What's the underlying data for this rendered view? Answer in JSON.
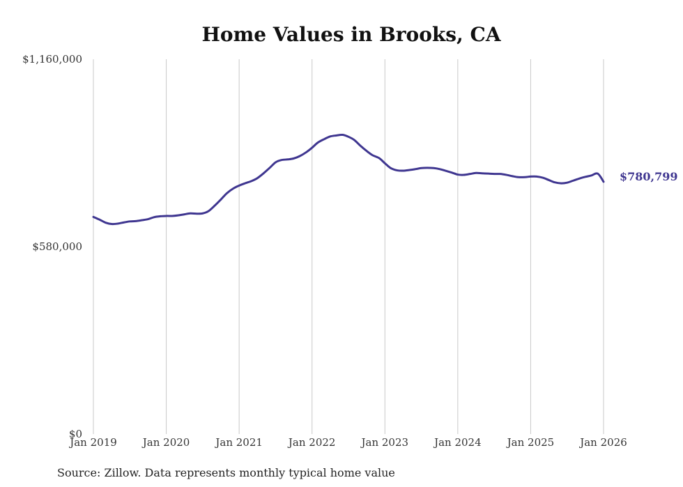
{
  "chart_data": {
    "type": "line",
    "title": "Home Values in Brooks, CA",
    "xlabel": "",
    "ylabel": "",
    "ylim": [
      0,
      1160000
    ],
    "yticks": [
      0,
      580000,
      1160000
    ],
    "ytick_labels": [
      "$0",
      "$580,000",
      "$1,160,000"
    ],
    "xlim": [
      2019.0,
      2026.08
    ],
    "xticks": [
      2019,
      2020,
      2021,
      2022,
      2023,
      2024,
      2025,
      2026
    ],
    "xtick_labels": [
      "Jan 2019",
      "Jan 2020",
      "Jan 2021",
      "Jan 2022",
      "Jan 2023",
      "Jan 2024",
      "Jan 2025",
      "Jan 2026"
    ],
    "grid": "vertical",
    "series": [
      {
        "name": "Typical home value",
        "color": "#3f3690",
        "end_label": "$780,799",
        "points": [
          [
            2019.0,
            672000
          ],
          [
            2019.08,
            664000
          ],
          [
            2019.17,
            654000
          ],
          [
            2019.25,
            650000
          ],
          [
            2019.33,
            651000
          ],
          [
            2019.42,
            655000
          ],
          [
            2019.5,
            658000
          ],
          [
            2019.58,
            659000
          ],
          [
            2019.67,
            662000
          ],
          [
            2019.75,
            665000
          ],
          [
            2019.83,
            671000
          ],
          [
            2019.92,
            674000
          ],
          [
            2020.0,
            675000
          ],
          [
            2020.08,
            675000
          ],
          [
            2020.17,
            677000
          ],
          [
            2020.25,
            680000
          ],
          [
            2020.33,
            683000
          ],
          [
            2020.42,
            682000
          ],
          [
            2020.5,
            683000
          ],
          [
            2020.58,
            690000
          ],
          [
            2020.67,
            708000
          ],
          [
            2020.75,
            726000
          ],
          [
            2020.83,
            745000
          ],
          [
            2020.92,
            760000
          ],
          [
            2021.0,
            769000
          ],
          [
            2021.08,
            776000
          ],
          [
            2021.17,
            783000
          ],
          [
            2021.25,
            792000
          ],
          [
            2021.33,
            806000
          ],
          [
            2021.42,
            824000
          ],
          [
            2021.5,
            841000
          ],
          [
            2021.58,
            848000
          ],
          [
            2021.67,
            850000
          ],
          [
            2021.75,
            853000
          ],
          [
            2021.83,
            860000
          ],
          [
            2021.92,
            872000
          ],
          [
            2022.0,
            886000
          ],
          [
            2022.08,
            902000
          ],
          [
            2022.17,
            913000
          ],
          [
            2022.25,
            921000
          ],
          [
            2022.33,
            924000
          ],
          [
            2022.42,
            926000
          ],
          [
            2022.5,
            920000
          ],
          [
            2022.58,
            910000
          ],
          [
            2022.67,
            891000
          ],
          [
            2022.75,
            876000
          ],
          [
            2022.83,
            863000
          ],
          [
            2022.92,
            854000
          ],
          [
            2023.0,
            838000
          ],
          [
            2023.08,
            823000
          ],
          [
            2023.17,
            816000
          ],
          [
            2023.25,
            815000
          ],
          [
            2023.33,
            817000
          ],
          [
            2023.42,
            820000
          ],
          [
            2023.5,
            823000
          ],
          [
            2023.58,
            824000
          ],
          [
            2023.67,
            823000
          ],
          [
            2023.75,
            820000
          ],
          [
            2023.83,
            815000
          ],
          [
            2023.92,
            809000
          ],
          [
            2024.0,
            803000
          ],
          [
            2024.08,
            802000
          ],
          [
            2024.17,
            805000
          ],
          [
            2024.25,
            808000
          ],
          [
            2024.33,
            807000
          ],
          [
            2024.42,
            806000
          ],
          [
            2024.5,
            805000
          ],
          [
            2024.58,
            805000
          ],
          [
            2024.67,
            802000
          ],
          [
            2024.75,
            798000
          ],
          [
            2024.83,
            795000
          ],
          [
            2024.92,
            795000
          ],
          [
            2025.0,
            797000
          ],
          [
            2025.08,
            797000
          ],
          [
            2025.17,
            793000
          ],
          [
            2025.25,
            786000
          ],
          [
            2025.33,
            779000
          ],
          [
            2025.42,
            776000
          ],
          [
            2025.5,
            778000
          ],
          [
            2025.58,
            784000
          ],
          [
            2025.67,
            791000
          ],
          [
            2025.75,
            796000
          ],
          [
            2025.83,
            800000
          ],
          [
            2025.92,
            806000
          ],
          [
            2026.0,
            780799
          ]
        ]
      }
    ],
    "source": "Source: Zillow. Data represents monthly typical home value"
  }
}
